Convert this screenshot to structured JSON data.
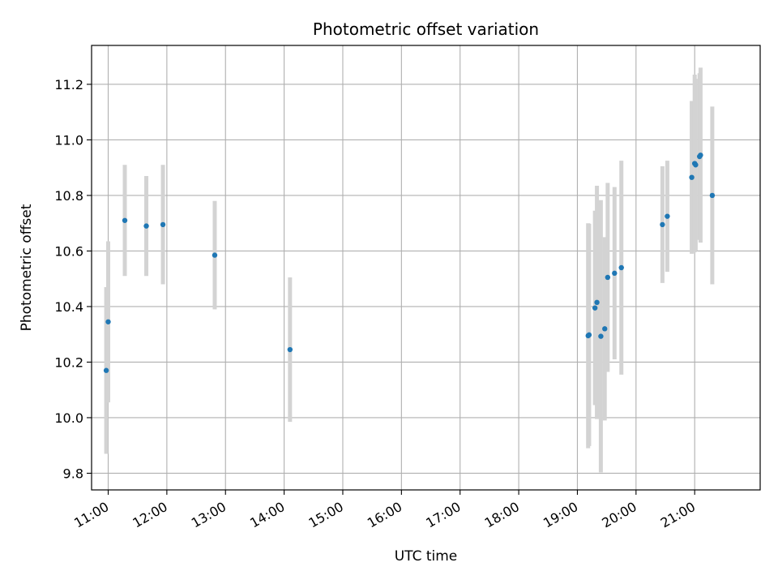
{
  "chart_data": {
    "type": "scatter",
    "title": "Photometric offset variation",
    "xlabel": "UTC time",
    "ylabel": "Photometric offset",
    "x_is_time_of_day": true,
    "xlim": [
      "10:43",
      "22:07"
    ],
    "ylim": [
      9.74,
      11.34
    ],
    "x_ticks": [
      "11:00",
      "12:00",
      "13:00",
      "14:00",
      "15:00",
      "16:00",
      "17:00",
      "18:00",
      "19:00",
      "20:00",
      "21:00"
    ],
    "y_ticks": [
      "9.8",
      "10.0",
      "10.2",
      "10.4",
      "10.6",
      "10.8",
      "11.0",
      "11.2"
    ],
    "grid": true,
    "legend": "none",
    "marker_color": "#1f77b4",
    "errorbar_color": "#d3d3d3",
    "points": [
      {
        "x": "10:58",
        "y": 10.17,
        "yerr": 0.3
      },
      {
        "x": "11:00",
        "y": 10.345,
        "yerr": 0.29
      },
      {
        "x": "11:17",
        "y": 10.71,
        "yerr": 0.2
      },
      {
        "x": "11:39",
        "y": 10.69,
        "yerr": 0.18
      },
      {
        "x": "11:56",
        "y": 10.695,
        "yerr": 0.215
      },
      {
        "x": "12:49",
        "y": 10.585,
        "yerr": 0.195
      },
      {
        "x": "14:06",
        "y": 10.245,
        "yerr": 0.26
      },
      {
        "x": "19:11",
        "y": 10.295,
        "yerr": 0.405
      },
      {
        "x": "19:12",
        "y": 10.298,
        "yerr": 0.4
      },
      {
        "x": "19:18",
        "y": 10.395,
        "yerr": 0.35
      },
      {
        "x": "19:20",
        "y": 10.415,
        "yerr": 0.42
      },
      {
        "x": "19:24",
        "y": 10.293,
        "yerr": 0.49
      },
      {
        "x": "19:28",
        "y": 10.32,
        "yerr": 0.33
      },
      {
        "x": "19:31",
        "y": 10.505,
        "yerr": 0.34
      },
      {
        "x": "19:38",
        "y": 10.52,
        "yerr": 0.31
      },
      {
        "x": "19:45",
        "y": 10.54,
        "yerr": 0.385
      },
      {
        "x": "20:27",
        "y": 10.695,
        "yerr": 0.21
      },
      {
        "x": "20:32",
        "y": 10.725,
        "yerr": 0.2
      },
      {
        "x": "20:57",
        "y": 10.865,
        "yerr": 0.275
      },
      {
        "x": "21:00",
        "y": 10.915,
        "yerr": 0.32
      },
      {
        "x": "21:01",
        "y": 10.91,
        "yerr": 0.31
      },
      {
        "x": "21:05",
        "y": 10.94,
        "yerr": 0.3
      },
      {
        "x": "21:06",
        "y": 10.945,
        "yerr": 0.315
      },
      {
        "x": "21:18",
        "y": 10.8,
        "yerr": 0.32
      }
    ]
  }
}
